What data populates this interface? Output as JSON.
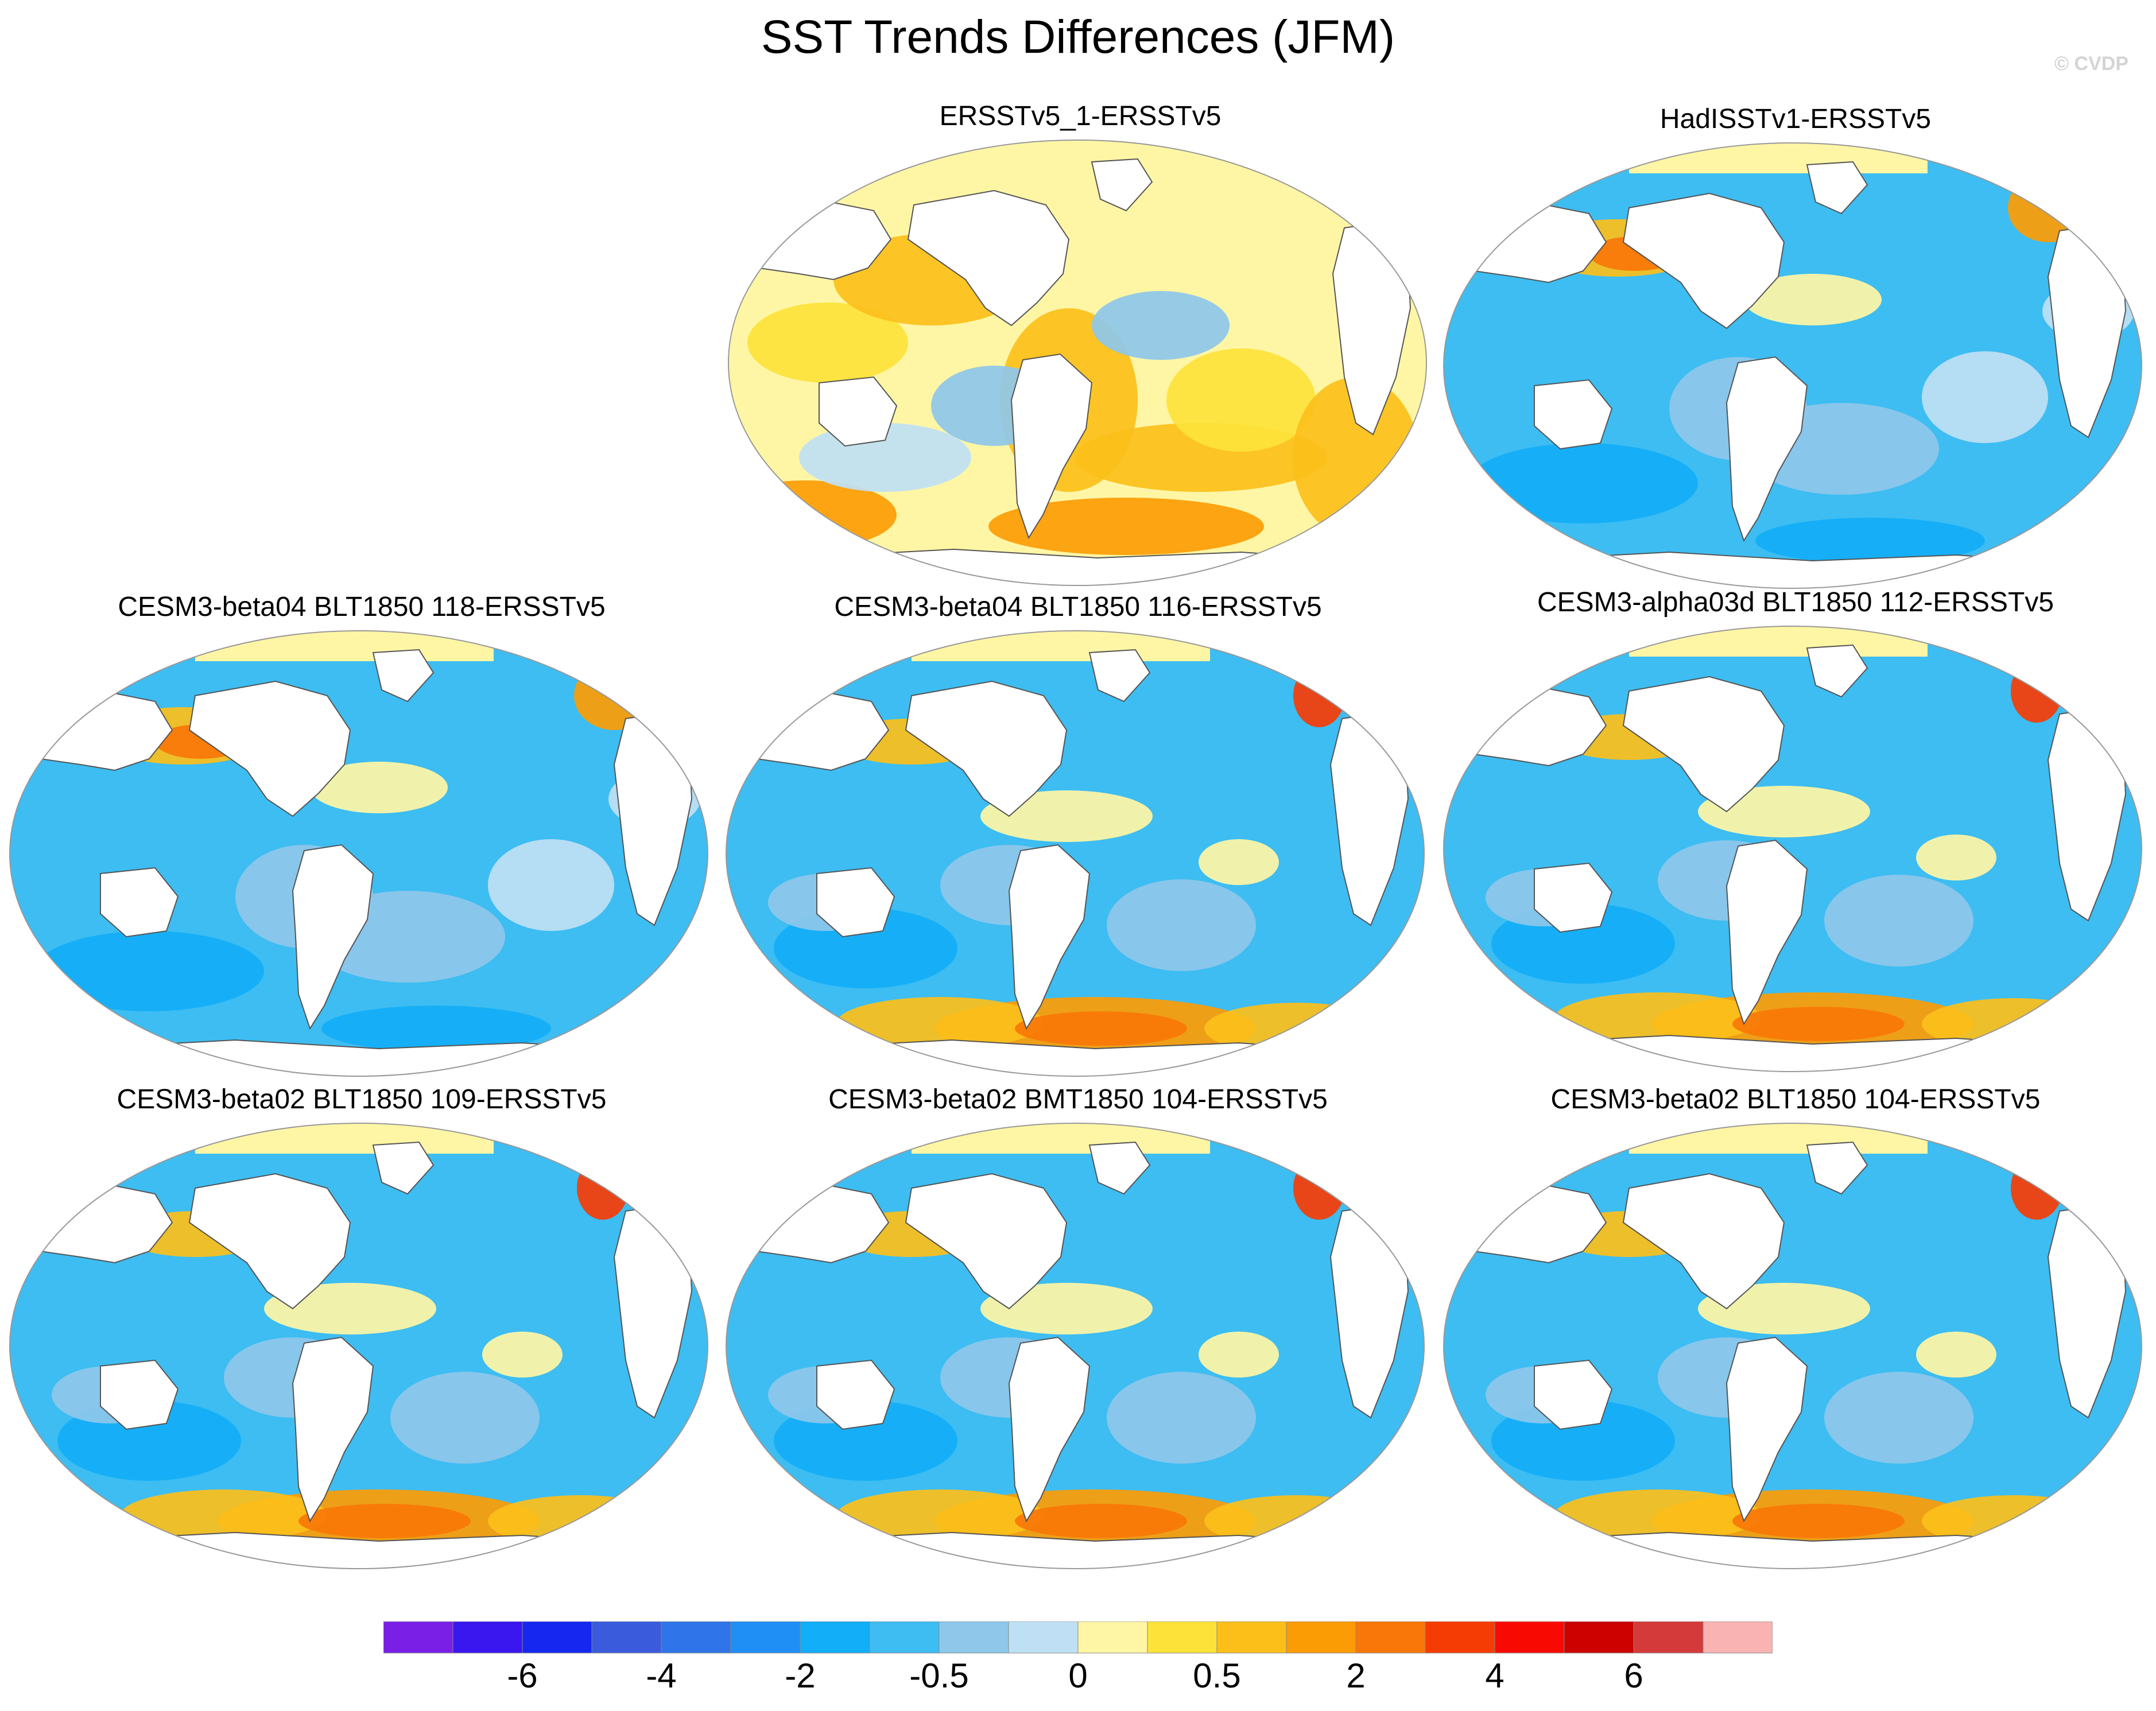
{
  "title": "SST Trends Differences (JFM)",
  "credit": "© CVDP",
  "panels": [
    {
      "id": "p1",
      "title": "ERSSTv5_1-ERSSTv5",
      "pattern": "warm"
    },
    {
      "id": "p2",
      "title": "HadISSTv1-ERSSTv5",
      "pattern": "cool"
    },
    {
      "id": "p3",
      "title": "CESM3-beta04 BLT1850 118-ERSSTv5",
      "pattern": "cool"
    },
    {
      "id": "p4",
      "title": "CESM3-beta04 BLT1850 116-ERSSTv5",
      "pattern": "cool-south-warm"
    },
    {
      "id": "p5",
      "title": "CESM3-alpha03d BLT1850 112-ERSSTv5",
      "pattern": "cool-south-warm"
    },
    {
      "id": "p6",
      "title": "CESM3-beta02 BLT1850 109-ERSSTv5",
      "pattern": "cool-south-warm"
    },
    {
      "id": "p7",
      "title": "CESM3-beta02 BMT1850 104-ERSSTv5",
      "pattern": "cool-south-warm"
    },
    {
      "id": "p8",
      "title": "CESM3-beta02 BLT1850 104-ERSSTv5",
      "pattern": "cool-south-warm"
    }
  ],
  "colorbar": {
    "colors": [
      "#7a1fe6",
      "#3a16ef",
      "#1628f0",
      "#3a5cdc",
      "#2f74e8",
      "#1f8ff5",
      "#12aef7",
      "#3dbdf2",
      "#8ec7ea",
      "#bfe0f4",
      "#fff6a5",
      "#fde23a",
      "#fcbf1a",
      "#fc9c05",
      "#f97708",
      "#f63c05",
      "#f80a02",
      "#cc0100",
      "#d43a3a",
      "#f9b3b3"
    ],
    "labels": [
      "-6",
      "-4",
      "-2",
      "-0.5",
      "0",
      "0.5",
      "2",
      "4",
      "6"
    ]
  }
}
